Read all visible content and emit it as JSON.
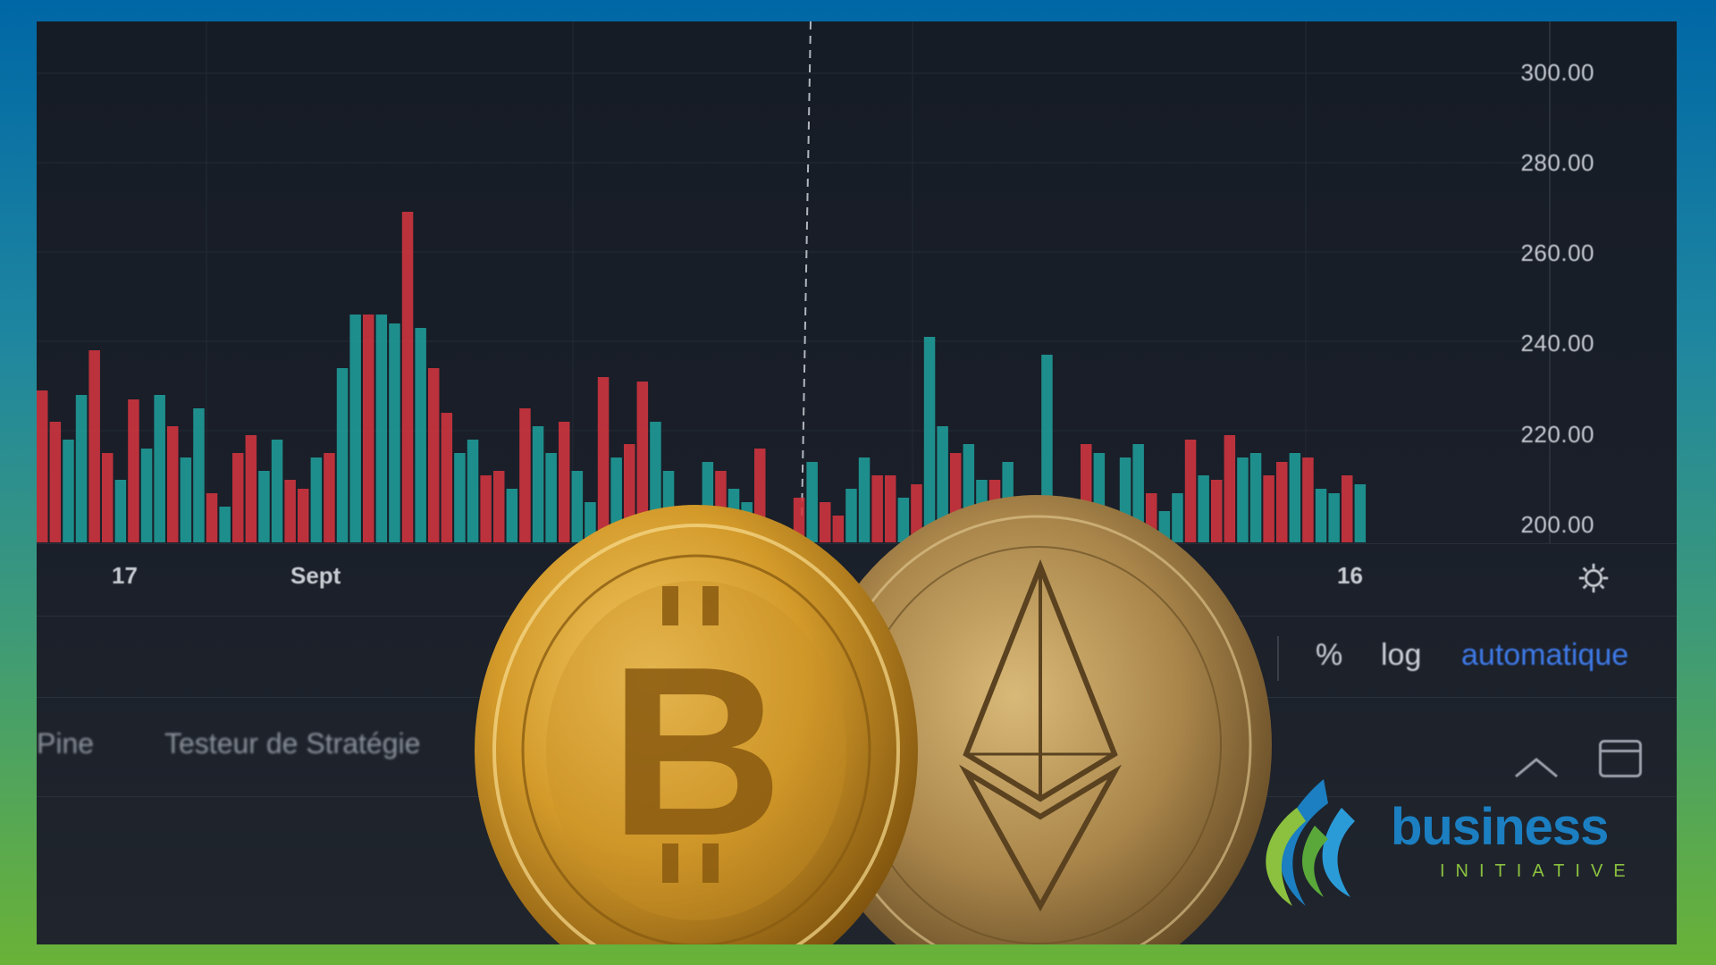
{
  "photo": {
    "description_free": true,
    "chart_background": "#161c26",
    "bullish_color": "#1f9e9a",
    "bearish_color": "#d2353f"
  },
  "screen_chart": {
    "y_ticks": [
      "300.00",
      "280.00",
      "260.00",
      "240.00",
      "220.00",
      "200.00"
    ],
    "x_ticks": [
      "17",
      "Sept",
      "16"
    ],
    "settings_icon": "gear-icon"
  },
  "toolbar": {
    "percent_label": "%",
    "log_label": "log",
    "auto_label": "automatique"
  },
  "tabs": {
    "pine_label": "Pine",
    "strategy_tester_label": "Testeur de Stratégie"
  },
  "logo": {
    "word": "business",
    "sub": "INITIATIVE",
    "primary_color": "#1b7fc1",
    "accent_color": "#8bc13f"
  },
  "frame": {
    "top_color": "#0067a6",
    "bottom_color": "#6ab237"
  }
}
